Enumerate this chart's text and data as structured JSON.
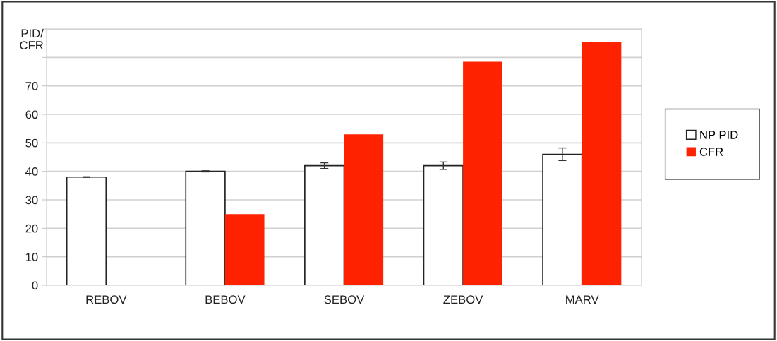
{
  "chart_data": {
    "type": "bar",
    "ylabel": "PID/\nCFR",
    "categories": [
      "REBOV",
      "BEBOV",
      "SEBOV",
      "ZEBOV",
      "MARV"
    ],
    "series": [
      {
        "name": "NP PID",
        "color": "#ffffff",
        "values": [
          38,
          40,
          42,
          42,
          46
        ],
        "errors": [
          0.1,
          0.2,
          1,
          1.3,
          2.2
        ]
      },
      {
        "name": "CFR",
        "color": "#ff2200",
        "values": [
          null,
          25,
          53,
          78.5,
          85.5
        ]
      }
    ],
    "ylim": [
      0,
      90
    ],
    "yticks": [
      0,
      10,
      20,
      30,
      40,
      50,
      60,
      70,
      {
        "value": 80,
        "label": null
      },
      {
        "value": 90,
        "label": null
      }
    ],
    "grid": "y",
    "legend": "right"
  }
}
